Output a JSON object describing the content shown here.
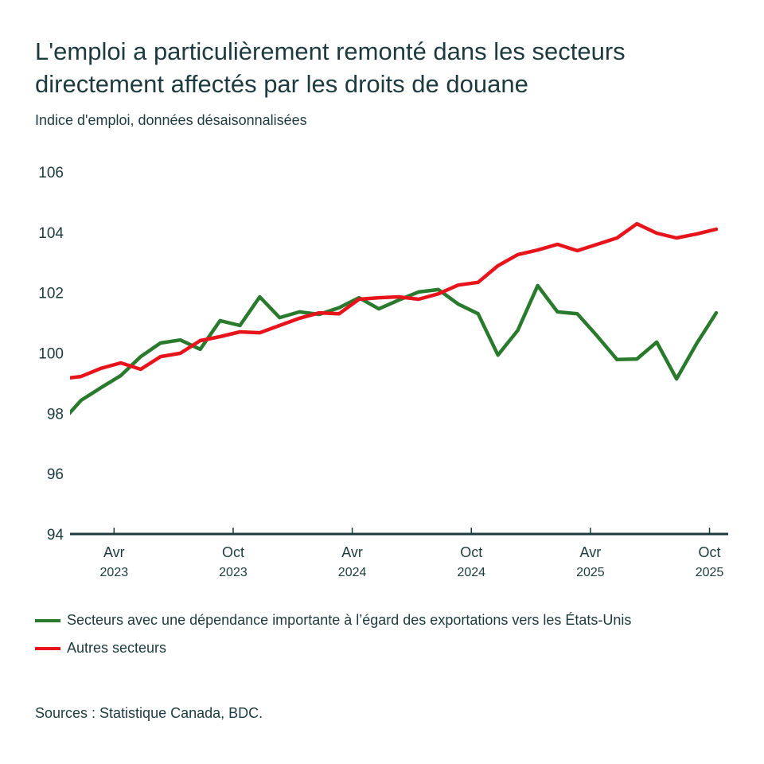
{
  "chart_data": {
    "type": "line",
    "title": "L'emploi a particulièrement remonté dans les secteurs directement affectés par les droits de douane",
    "subtitle": "Indice d'emploi, données désaisonnalisées",
    "xlabel": "",
    "ylabel": "",
    "ylim": [
      94,
      106
    ],
    "yticks": [
      "106",
      "104",
      "102",
      "100",
      "98",
      "96",
      "94"
    ],
    "xticks": [
      {
        "month": "Avr",
        "year": "2023"
      },
      {
        "month": "Oct",
        "year": "2023"
      },
      {
        "month": "Avr",
        "year": "2024"
      },
      {
        "month": "Oct",
        "year": "2024"
      },
      {
        "month": "Avr",
        "year": "2025"
      },
      {
        "month": "Oct",
        "year": "2025"
      }
    ],
    "grid": false,
    "x": [
      "2023-01",
      "2023-02",
      "2023-03",
      "2023-04",
      "2023-05",
      "2023-06",
      "2023-07",
      "2023-08",
      "2023-09",
      "2023-10",
      "2023-11",
      "2023-12",
      "2024-01",
      "2024-02",
      "2024-03",
      "2024-04",
      "2024-05",
      "2024-06",
      "2024-07",
      "2024-08",
      "2024-09",
      "2024-10",
      "2024-11",
      "2024-12",
      "2025-01",
      "2025-02",
      "2025-03",
      "2025-04",
      "2025-05",
      "2025-06",
      "2025-07",
      "2025-08",
      "2025-09",
      "2025-10"
    ],
    "series": [
      {
        "name": "Secteurs avec une dépendance importante à l’égard des exportations vers les États-Unis",
        "color": "#2a7a2e",
        "values": [
          97.7,
          98.43,
          98.85,
          99.25,
          99.88,
          100.33,
          100.43,
          100.12,
          101.07,
          100.91,
          101.86,
          101.17,
          101.36,
          101.28,
          101.5,
          101.83,
          101.46,
          101.75,
          102.02,
          102.1,
          101.62,
          101.3,
          99.93,
          100.75,
          102.23,
          101.36,
          101.3,
          100.56,
          99.78,
          99.8,
          100.36,
          99.14,
          100.3,
          101.33
        ]
      },
      {
        "name": "Autres secteurs",
        "color": "#e8141b",
        "values": [
          99.14,
          99.22,
          99.49,
          99.67,
          99.46,
          99.88,
          99.99,
          100.41,
          100.54,
          100.7,
          100.67,
          100.91,
          101.15,
          101.33,
          101.3,
          101.78,
          101.83,
          101.86,
          101.78,
          101.96,
          102.25,
          102.34,
          102.89,
          103.26,
          103.41,
          103.6,
          103.39,
          103.6,
          103.81,
          104.28,
          103.97,
          103.81,
          103.94,
          104.1
        ]
      }
    ],
    "legend_position": "bottom-left"
  },
  "source": "Sources : Statistique Canada, BDC."
}
